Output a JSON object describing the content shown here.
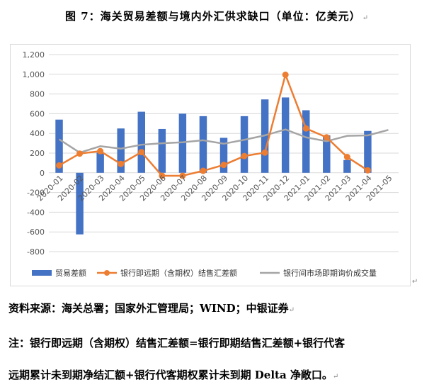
{
  "title": "图 7：海关贸易差额与境内外汇供求缺口（单位：亿美元）",
  "paragraph_mark": "↵",
  "chart_data": {
    "type": "bar",
    "categories": [
      "2020-01",
      "2020-02",
      "2020-03",
      "2020-04",
      "2020-05",
      "2020-06",
      "2020-07",
      "2020-08",
      "2020-09",
      "2020-10",
      "2020-11",
      "2020-12",
      "2021-01",
      "2021-02",
      "2021-03",
      "2021-04",
      "2021-05"
    ],
    "ylim": [
      -800,
      1200
    ],
    "yticks": [
      "1,200",
      "1,000",
      "800",
      "600",
      "400",
      "200",
      "0",
      "-200",
      "-400",
      "-600",
      "-800"
    ],
    "ytick_values": [
      1200,
      1000,
      800,
      600,
      400,
      200,
      0,
      -200,
      -400,
      -600,
      -800
    ],
    "series": [
      {
        "name": "贸易差额",
        "type": "bar",
        "color": "#4472c4",
        "values": [
          540,
          -625,
          205,
          450,
          620,
          445,
          600,
          575,
          355,
          575,
          745,
          765,
          635,
          380,
          130,
          425,
          null
        ]
      },
      {
        "name": "银行即远期（含期权）结售汇差额",
        "type": "line",
        "color": "#ed7d31",
        "values": [
          75,
          195,
          220,
          90,
          210,
          -30,
          -30,
          20,
          80,
          170,
          205,
          995,
          450,
          360,
          160,
          25,
          null
        ]
      },
      {
        "name": "银行间市场即期询价成交量",
        "type": "line",
        "color": "#a5a5a5",
        "values": [
          340,
          205,
          270,
          245,
          285,
          300,
          310,
          330,
          295,
          335,
          380,
          440,
          360,
          320,
          375,
          380,
          435
        ]
      }
    ]
  },
  "source": "资料来源：海关总署；国家外汇管理局；WIND；中银证券",
  "note_line1": "注：银行即远期（含期权）结售汇差额=银行即期结售汇差额+银行代客",
  "note_line2": "远期累计未到期净结汇额+银行代客期权累计未到期 Delta 净敞口。"
}
